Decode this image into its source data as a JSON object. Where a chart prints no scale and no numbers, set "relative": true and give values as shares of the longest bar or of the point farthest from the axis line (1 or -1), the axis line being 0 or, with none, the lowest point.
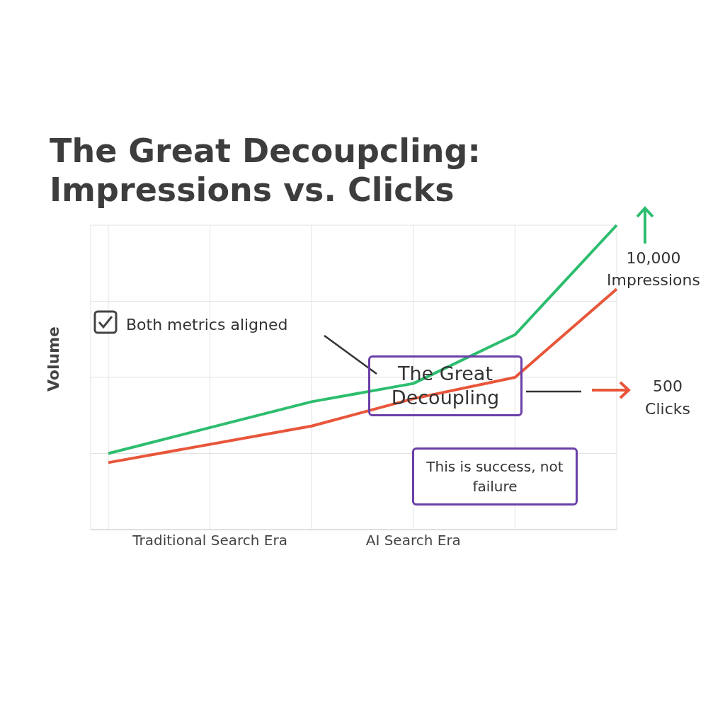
{
  "chart_data": {
    "type": "line",
    "title": "The Great Decoupcling:\nImpressions vs. Clicks",
    "ylabel": "Volume",
    "relative": true,
    "categories": [
      null,
      "Traditional Search Era",
      null,
      "AI Search Era",
      null,
      null
    ],
    "series": [
      {
        "name": "Impressions",
        "color": "#2dbd6e",
        "values": [
          0.25,
          null,
          0.42,
          0.48,
          0.64,
          1.0
        ]
      },
      {
        "name": "Clicks",
        "color": "#e8563a",
        "values": [
          0.22,
          null,
          0.34,
          0.43,
          0.5,
          0.79
        ]
      }
    ],
    "annotations": [
      "Both metrics aligned",
      "The Great Decoupling",
      "This is success, not failure",
      "10,000",
      "500"
    ],
    "grid": true,
    "marker": "none",
    "line_style": "solid"
  }
}
